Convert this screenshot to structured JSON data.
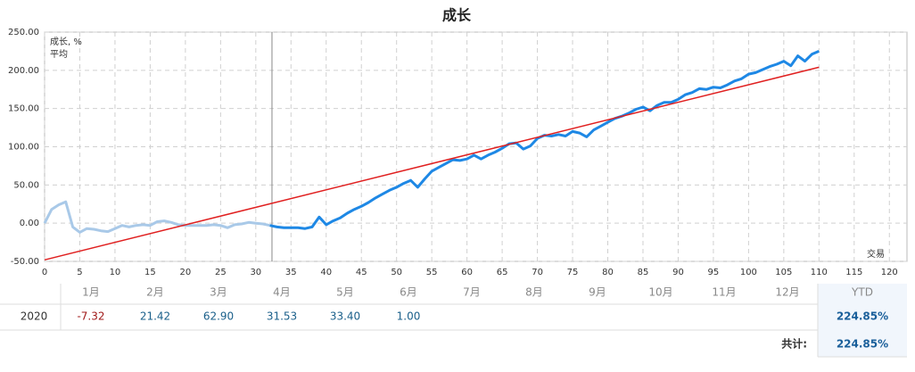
{
  "chart_data": {
    "type": "line",
    "title": "成长",
    "x_label": "交易",
    "xlim": [
      0,
      122.5
    ],
    "xticks": [
      0,
      5,
      10,
      15,
      20,
      25,
      30,
      35,
      40,
      45,
      50,
      55,
      60,
      65,
      70,
      75,
      80,
      85,
      90,
      95,
      100,
      105,
      110,
      115,
      120
    ],
    "ylim": [
      -50,
      250
    ],
    "yticks": [
      {
        "value": -50,
        "label": "-50.00"
      },
      {
        "value": 0,
        "label": "0.00"
      },
      {
        "value": 50,
        "label": "50.00"
      },
      {
        "value": 100,
        "label": "100.00"
      },
      {
        "value": 150,
        "label": "150.00"
      },
      {
        "value": 200,
        "label": "200.00"
      },
      {
        "value": 250,
        "label": "250.00"
      }
    ],
    "grid": true,
    "legend": "top-left",
    "cursor_x": 32.3,
    "faded_color": "#a9c9e8",
    "series": [
      {
        "name": "成长, %",
        "color": "#1e88e5",
        "x": [
          0,
          1,
          2,
          3,
          4,
          5,
          6,
          7,
          8,
          9,
          10,
          11,
          12,
          13,
          14,
          15,
          16,
          17,
          18,
          19,
          20,
          21,
          22,
          23,
          24,
          25,
          26,
          27,
          28,
          29,
          30,
          31,
          32,
          33,
          34,
          35,
          36,
          37,
          38,
          39,
          40,
          41,
          42,
          43,
          44,
          45,
          46,
          47,
          48,
          49,
          50,
          51,
          52,
          53,
          54,
          55,
          56,
          57,
          58,
          59,
          60,
          61,
          62,
          63,
          64,
          65,
          66,
          67,
          68,
          69,
          70,
          71,
          72,
          73,
          74,
          75,
          76,
          77,
          78,
          79,
          80,
          81,
          82,
          83,
          84,
          85,
          86,
          87,
          88,
          89,
          90,
          91,
          92,
          93,
          94,
          95,
          96,
          97,
          98,
          99,
          100,
          101,
          102,
          103,
          104,
          105,
          106,
          107,
          108,
          109,
          110
        ],
        "values": [
          0,
          18,
          24,
          28,
          -5,
          -12,
          -7,
          -8,
          -10,
          -11,
          -7,
          -3,
          -5,
          -3,
          -2,
          -3,
          2,
          3,
          1,
          -2,
          -3,
          -3,
          -3,
          -3,
          -2,
          -3,
          -6,
          -2,
          -1,
          1,
          0,
          -1,
          -3,
          -5,
          -6,
          -6,
          -6,
          -7,
          -5,
          8,
          -2,
          3,
          7,
          13,
          18,
          22,
          27,
          33,
          38,
          43,
          47,
          52,
          56,
          47,
          58,
          68,
          73,
          78,
          83,
          82,
          84,
          89,
          84,
          89,
          93,
          98,
          104,
          105,
          97,
          101,
          111,
          115,
          114,
          116,
          114,
          120,
          118,
          113,
          122,
          127,
          132,
          137,
          140,
          144,
          149,
          152,
          147,
          154,
          158,
          158,
          162,
          168,
          171,
          176,
          175,
          178,
          177,
          181,
          186,
          189,
          195,
          197,
          201,
          205,
          208,
          212,
          206,
          219,
          212,
          221,
          225
        ]
      },
      {
        "name": "平均",
        "color": "#e02020",
        "x": [
          0,
          110
        ],
        "values": [
          -48,
          204
        ]
      }
    ]
  },
  "table": {
    "header": [
      "1月",
      "2月",
      "3月",
      "4月",
      "5月",
      "6月",
      "7月",
      "8月",
      "9月",
      "10月",
      "11月",
      "12月",
      "YTD"
    ],
    "rows": [
      [
        "2020",
        "-7.32",
        "21.42",
        "62.90",
        "31.53",
        "33.40",
        "1.00",
        null,
        null,
        null,
        null,
        null,
        null,
        "224.85%"
      ]
    ],
    "total_label": "共计:",
    "total": "224.85%"
  }
}
